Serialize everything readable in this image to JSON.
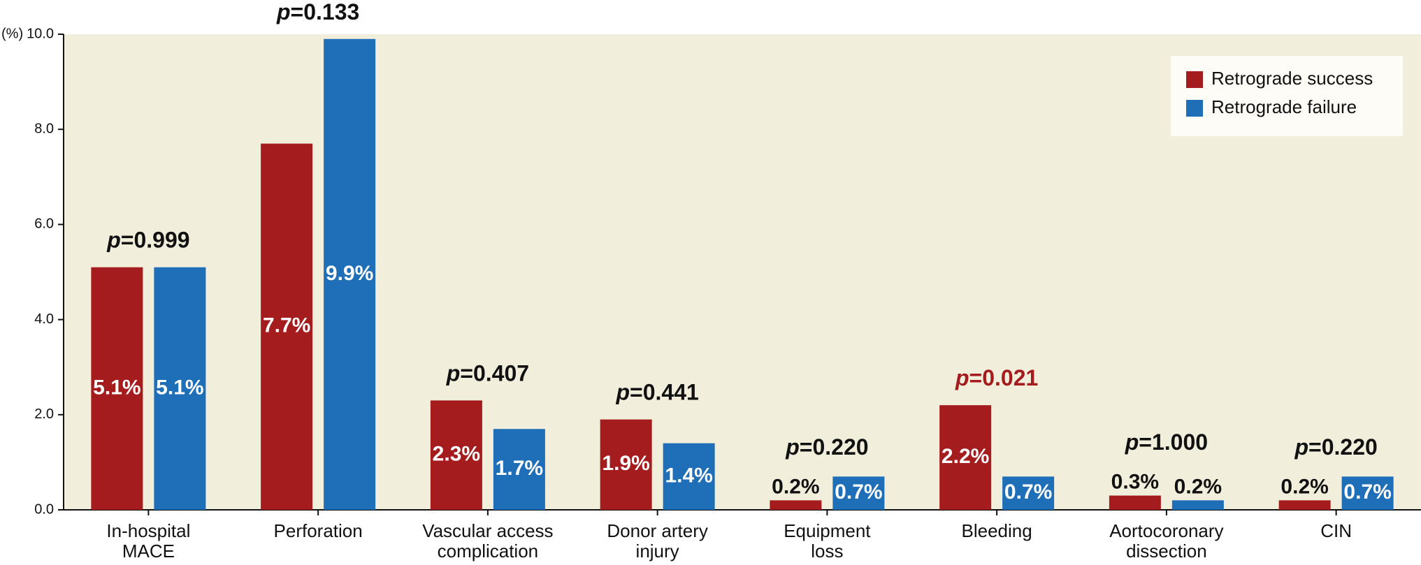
{
  "chart_data": {
    "type": "bar",
    "y_axis_label": "(%)",
    "categories": [
      [
        "In-hospital",
        "MACE"
      ],
      [
        "Perforation"
      ],
      [
        "Vascular access",
        "complication"
      ],
      [
        "Donor artery",
        "injury"
      ],
      [
        "Equipment",
        "loss"
      ],
      [
        "Bleeding"
      ],
      [
        "Aortocoronary",
        "dissection"
      ],
      [
        "CIN"
      ]
    ],
    "series": [
      {
        "name": "Retrograde success",
        "color": "#a51c1e",
        "values": [
          5.1,
          7.7,
          2.3,
          1.9,
          0.2,
          2.2,
          0.3,
          0.2
        ],
        "value_labels": [
          "5.1%",
          "7.7%",
          "2.3%",
          "1.9%",
          "0.2%",
          "2.2%",
          "0.3%",
          "0.2%"
        ]
      },
      {
        "name": "Retrograde failure",
        "color": "#1f6fb8",
        "values": [
          5.1,
          9.9,
          1.7,
          1.4,
          0.7,
          0.7,
          0.2,
          0.7
        ],
        "value_labels": [
          "5.1%",
          "9.9%",
          "1.7%",
          "1.4%",
          "0.7%",
          "0.7%",
          "0.2%",
          "0.7%"
        ]
      }
    ],
    "annotations": [
      {
        "symbol": "p",
        "text": "=0.999",
        "color": "#111111"
      },
      {
        "symbol": "p",
        "text": "=0.133",
        "color": "#111111"
      },
      {
        "symbol": "p",
        "text": "=0.407",
        "color": "#111111"
      },
      {
        "symbol": "p",
        "text": "=0.441",
        "color": "#111111"
      },
      {
        "symbol": "p",
        "text": "=0.220",
        "color": "#111111"
      },
      {
        "symbol": "p",
        "text": "=0.021",
        "color": "#a51c1e"
      },
      {
        "symbol": "p",
        "text": "=1.000",
        "color": "#111111"
      },
      {
        "symbol": "p",
        "text": "=0.220",
        "color": "#111111"
      }
    ],
    "ylim": [
      0,
      10
    ],
    "yticks": [
      {
        "value": 0,
        "label": "0.0"
      },
      {
        "value": 2,
        "label": "2.0"
      },
      {
        "value": 4,
        "label": "4.0"
      },
      {
        "value": 6,
        "label": "6.0"
      },
      {
        "value": 8,
        "label": "8.0"
      },
      {
        "value": 10,
        "label": "10.0"
      }
    ],
    "legend": "upper right",
    "background": "#f2eedc"
  }
}
